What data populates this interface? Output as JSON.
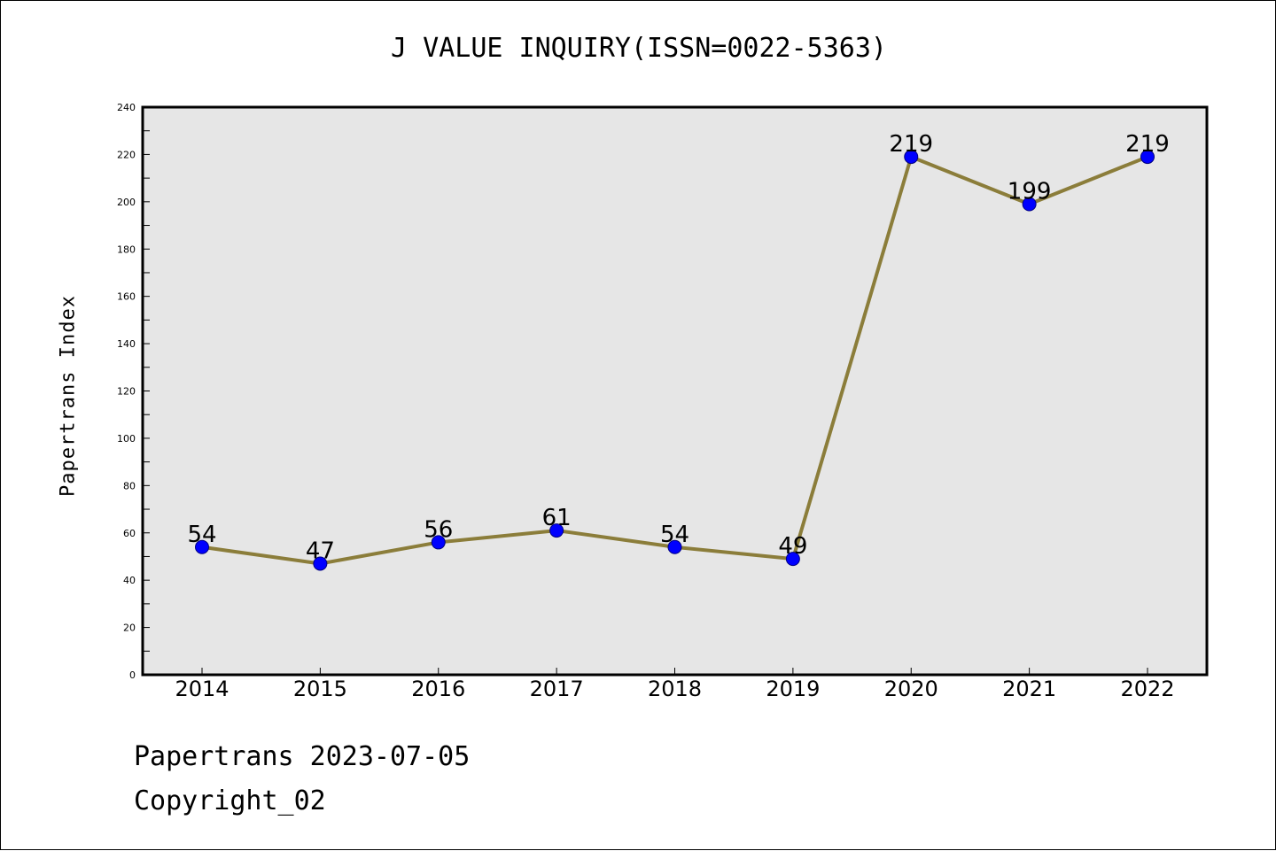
{
  "chart_data": {
    "type": "line",
    "title": "J VALUE INQUIRY(ISSN=0022-5363)",
    "ylabel": "Papertrans Index",
    "xlabel": "",
    "categories": [
      "2014",
      "2015",
      "2016",
      "2017",
      "2018",
      "2019",
      "2020",
      "2021",
      "2022"
    ],
    "values": [
      54,
      47,
      56,
      61,
      54,
      49,
      219,
      199,
      219
    ],
    "ylim": [
      0,
      240
    ],
    "yticks": [
      0,
      20,
      40,
      60,
      80,
      100,
      120,
      140,
      160,
      180,
      200,
      220,
      240
    ],
    "grid": false,
    "colors": {
      "line": "#8B7D3A",
      "marker": "#0000FF",
      "marker_edge": "#000080",
      "plot_bg": "#E6E6E6"
    }
  },
  "footer": {
    "date": "Papertrans 2023-07-05",
    "copyright": "Copyright_02"
  }
}
